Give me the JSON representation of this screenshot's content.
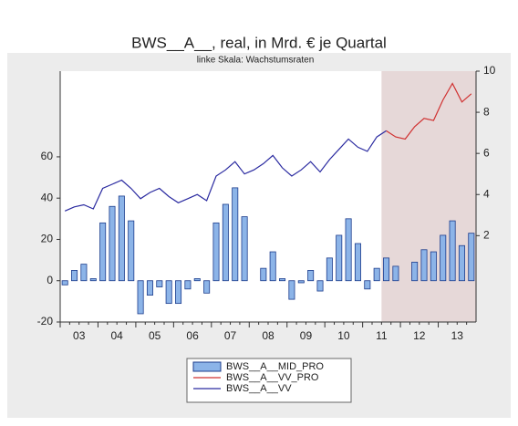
{
  "chart_data": {
    "type": "bar_line",
    "title": "BWS__A__, real, in Mrd. € je Quartal",
    "subtitle": "linke Skala: Wachstumsraten",
    "categories": [
      "03",
      null,
      null,
      null,
      "04",
      null,
      null,
      null,
      "05",
      null,
      null,
      null,
      "06",
      null,
      null,
      null,
      "07",
      null,
      null,
      null,
      "08",
      null,
      null,
      null,
      "09",
      null,
      null,
      null,
      "10",
      null,
      null,
      null,
      "11",
      null,
      null,
      null,
      "12",
      null,
      null,
      null,
      "13",
      null,
      null,
      null
    ],
    "ylim": [
      -20,
      101.5
    ],
    "yticks": [
      -20,
      0,
      20,
      40,
      60
    ],
    "y2lim": [
      -2.2,
      10
    ],
    "y2ticks": [
      2,
      4,
      6,
      8,
      10
    ],
    "series": [
      {
        "name": "BWS__A__MID_PRO",
        "color": "#8cb4e8",
        "values": [
          -2,
          5,
          8,
          1,
          28,
          36,
          41,
          29,
          -16,
          -7,
          -3,
          -11,
          -11,
          -4,
          1,
          -6,
          28,
          37,
          45,
          31,
          0,
          6,
          14,
          1,
          -9,
          -1,
          5,
          -5,
          11,
          22,
          30,
          18,
          -4,
          6,
          11,
          7,
          0,
          9,
          15,
          14,
          22,
          29,
          17,
          23
        ]
      },
      {
        "name": "BWS__A__VV_PRO",
        "color": "#d03030",
        "axis": "y2",
        "values": [
          null,
          null,
          null,
          null,
          null,
          null,
          null,
          null,
          null,
          null,
          null,
          null,
          null,
          null,
          null,
          null,
          null,
          null,
          null,
          null,
          null,
          null,
          null,
          null,
          null,
          null,
          null,
          null,
          null,
          null,
          null,
          null,
          null,
          null,
          7.1,
          6.8,
          6.7,
          7.3,
          7.7,
          7.6,
          8.6,
          9.4,
          8.5,
          8.9
        ]
      },
      {
        "name": "BWS__A__VV",
        "color": "#2a2aa0",
        "axis": "y2",
        "values": [
          3.2,
          3.4,
          3.5,
          3.3,
          4.3,
          4.5,
          4.7,
          4.3,
          3.8,
          4.1,
          4.3,
          3.9,
          3.6,
          3.8,
          4.0,
          3.7,
          4.9,
          5.2,
          5.6,
          5.0,
          5.2,
          5.5,
          5.9,
          5.3,
          4.9,
          5.2,
          5.6,
          5.1,
          5.7,
          6.2,
          6.7,
          6.3,
          6.1,
          6.8,
          7.1,
          null,
          null,
          null,
          null,
          null,
          null,
          null,
          null,
          null
        ]
      }
    ]
  }
}
